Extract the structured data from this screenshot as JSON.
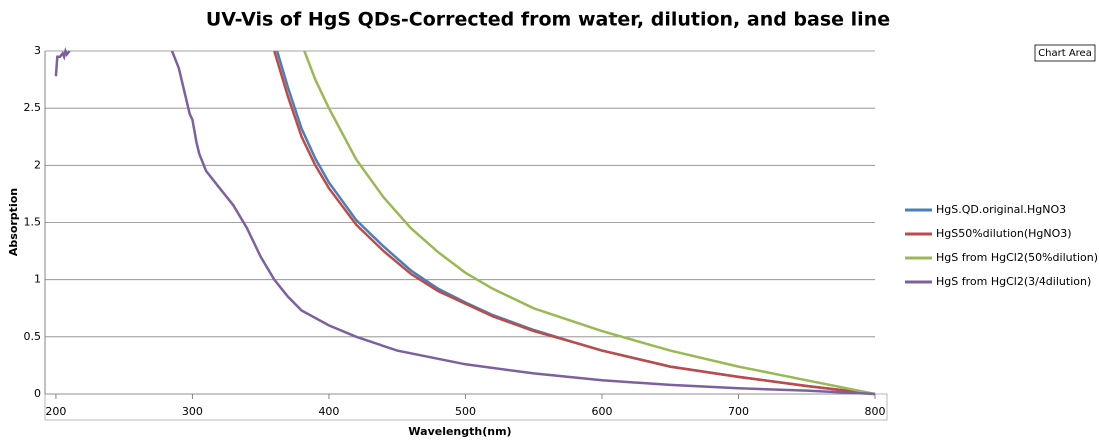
{
  "chart_data": {
    "type": "line",
    "title": "UV-Vis of HgS QDs-Corrected from water, dilution, and base line",
    "x_label": "Wavelength(nm)",
    "y_label": "Absorption",
    "tooltip": "Chart Area",
    "xlim": [
      192,
      800
    ],
    "xticks": [
      200,
      300,
      400,
      500,
      600,
      700,
      800
    ],
    "ylim": [
      0,
      3
    ],
    "yticks": [
      0,
      0.5,
      1,
      1.5,
      2,
      2.5,
      3
    ],
    "grid": true,
    "series": [
      {
        "name": "HgS.QD.original.HgNO3",
        "color": "#4a7ebb",
        "x": [
          362,
          370,
          380,
          390,
          400,
          420,
          440,
          460,
          480,
          500,
          520,
          550,
          580,
          600,
          650,
          700,
          750,
          800
        ],
        "values": [
          3,
          2.68,
          2.32,
          2.06,
          1.85,
          1.52,
          1.29,
          1.08,
          0.92,
          0.8,
          0.69,
          0.56,
          0.45,
          0.38,
          0.24,
          0.15,
          0.07,
          0
        ]
      },
      {
        "name": "HgS50%dilution(HgNO3)",
        "color": "#be4b48",
        "x": [
          360,
          370,
          380,
          390,
          400,
          420,
          440,
          460,
          480,
          500,
          520,
          550,
          580,
          600,
          650,
          700,
          750,
          800
        ],
        "values": [
          3,
          2.6,
          2.25,
          2.0,
          1.8,
          1.48,
          1.25,
          1.05,
          0.9,
          0.79,
          0.68,
          0.55,
          0.45,
          0.38,
          0.24,
          0.15,
          0.07,
          0
        ]
      },
      {
        "name": "HgS from HgCl2(50%dilution)",
        "color": "#98b954",
        "x": [
          382,
          390,
          400,
          420,
          440,
          460,
          480,
          500,
          520,
          550,
          600,
          650,
          700,
          750,
          800
        ],
        "values": [
          3,
          2.75,
          2.5,
          2.05,
          1.72,
          1.45,
          1.24,
          1.06,
          0.92,
          0.75,
          0.55,
          0.38,
          0.24,
          0.12,
          0
        ]
      },
      {
        "name": "HgS from HgCl2(3/4dilution)",
        "color": "#7d60a0",
        "x": [
          200,
          201,
          203,
          205,
          206,
          207,
          208,
          210,
          284,
          285,
          290,
          293,
          295,
          298,
          300,
          303,
          305,
          310,
          320,
          330,
          340,
          350,
          360,
          370,
          380,
          400,
          420,
          450,
          500,
          550,
          600,
          650,
          700,
          750,
          800
        ],
        "values": [
          2.78,
          2.95,
          2.95,
          2.98,
          2.95,
          3,
          2.97,
          3,
          null,
          3,
          2.85,
          2.7,
          2.6,
          2.45,
          2.4,
          2.2,
          2.1,
          1.95,
          1.8,
          1.65,
          1.45,
          1.2,
          1.0,
          0.85,
          0.73,
          0.6,
          0.5,
          0.38,
          0.26,
          0.18,
          0.12,
          0.08,
          0.05,
          0.03,
          0
        ]
      }
    ]
  }
}
